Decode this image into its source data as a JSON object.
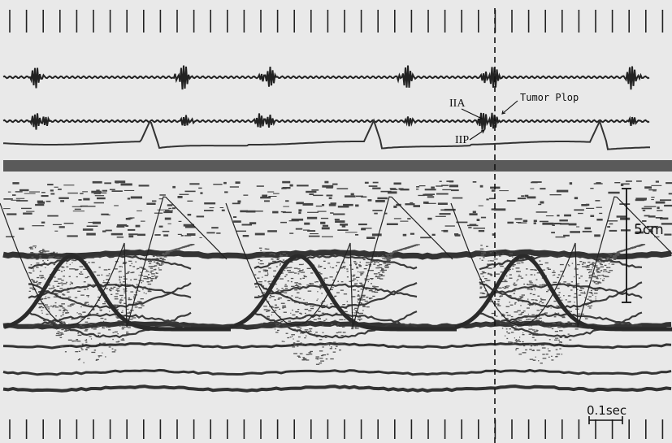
{
  "annotations": {
    "a2_label": "IIA",
    "p2_label": "IIP",
    "tumor_label": "Tumor Plop",
    "scale_distance": "5cm",
    "scale_time": "0.1sec"
  },
  "colors": {
    "background": "#e9e9e9",
    "trace": "#222222",
    "band": "#5a5a5a"
  }
}
